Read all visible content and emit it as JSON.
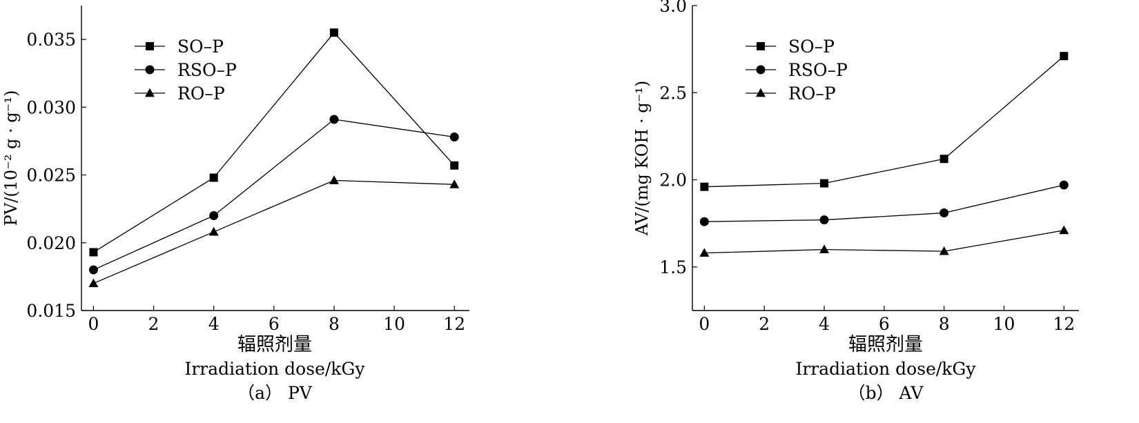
{
  "chart_data": [
    {
      "type": "line",
      "panel_caption": "（a） PV",
      "xlabel_cn": "辐照剂量",
      "xlabel_en": "Irradiation dose/kGy",
      "ylabel": "PV/(10⁻² g · g⁻¹)",
      "x": [
        0,
        4,
        8,
        12
      ],
      "xticks": [
        0,
        2,
        4,
        6,
        8,
        10,
        12
      ],
      "xtick_labels": [
        "0",
        "2",
        "4",
        "6",
        "8",
        "10",
        "12"
      ],
      "xlim": [
        -0.4,
        12.5
      ],
      "yticks": [
        0.015,
        0.02,
        0.025,
        0.03,
        0.035
      ],
      "ytick_labels": [
        "0.015",
        "0.020",
        "0.025",
        "0.030",
        "0.035"
      ],
      "ylim": [
        0.015,
        0.0375
      ],
      "series": [
        {
          "name": "SO–P",
          "marker": "square",
          "values": [
            0.0193,
            0.0248,
            0.0355,
            0.0257
          ]
        },
        {
          "name": "RSO–P",
          "marker": "circle",
          "values": [
            0.018,
            0.022,
            0.0291,
            0.0278
          ]
        },
        {
          "name": "RO–P",
          "marker": "triangle",
          "values": [
            0.017,
            0.0208,
            0.0246,
            0.0243
          ]
        }
      ],
      "grid": false,
      "legend": "top-left"
    },
    {
      "type": "line",
      "panel_caption": "（b） AV",
      "xlabel_cn": "辐照剂量",
      "xlabel_en": "Irradiation dose/kGy",
      "ylabel": "AV/(mg KOH · g⁻¹)",
      "x": [
        0,
        4,
        8,
        12
      ],
      "xticks": [
        0,
        2,
        4,
        6,
        8,
        10,
        12
      ],
      "xtick_labels": [
        "0",
        "2",
        "4",
        "6",
        "8",
        "10",
        "12"
      ],
      "xlim": [
        -0.4,
        12.5
      ],
      "yticks": [
        1.5,
        2.0,
        2.5,
        3.0
      ],
      "ytick_labels": [
        "1.5",
        "2.0",
        "2.5",
        "3.0"
      ],
      "ylim": [
        1.25,
        3.0
      ],
      "series": [
        {
          "name": "SO–P",
          "marker": "square",
          "values": [
            1.96,
            1.98,
            2.12,
            2.71
          ]
        },
        {
          "name": "RSO–P",
          "marker": "circle",
          "values": [
            1.76,
            1.77,
            1.81,
            1.97
          ]
        },
        {
          "name": "RO–P",
          "marker": "triangle",
          "values": [
            1.58,
            1.6,
            1.59,
            1.71
          ]
        }
      ],
      "grid": false,
      "legend": "top-left"
    }
  ]
}
